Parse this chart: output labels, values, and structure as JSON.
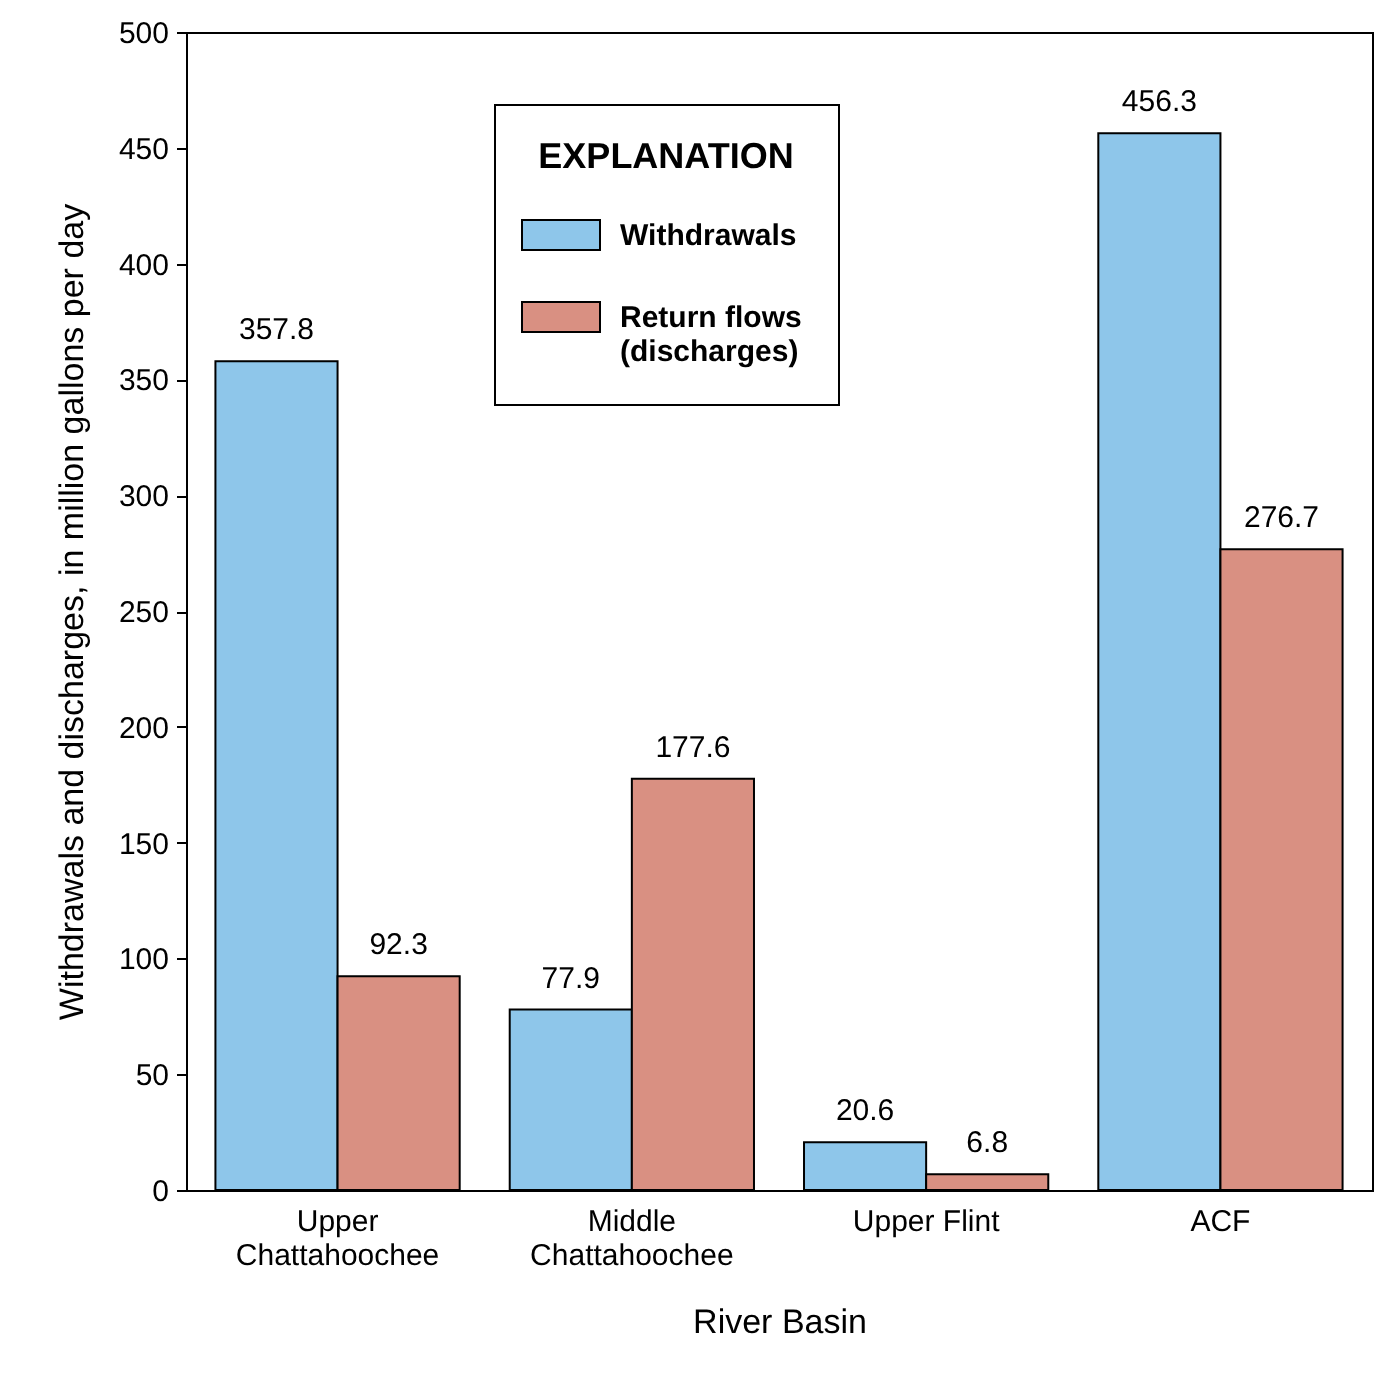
{
  "chart_data": {
    "type": "bar",
    "xlabel": "River Basin",
    "ylabel": "Withdrawals and discharges, in million gallons per day",
    "legend_title": "EXPLANATION",
    "categories": [
      "Upper Chattahoochee",
      "Middle Chattahoochee",
      "Upper Flint",
      "ACF"
    ],
    "series": [
      {
        "name": "Withdrawals",
        "color": "#8ec6ea",
        "values": [
          357.8,
          77.9,
          20.6,
          456.3
        ]
      },
      {
        "name": "Return flows (discharges)",
        "color": "#d99082",
        "values": [
          92.3,
          177.6,
          6.8,
          276.7
        ]
      }
    ],
    "ylim": [
      0,
      500
    ],
    "yticks": [
      0,
      50,
      100,
      150,
      200,
      250,
      300,
      350,
      400,
      450,
      500
    ],
    "data_labels": true,
    "grid": false,
    "legend": "top"
  }
}
